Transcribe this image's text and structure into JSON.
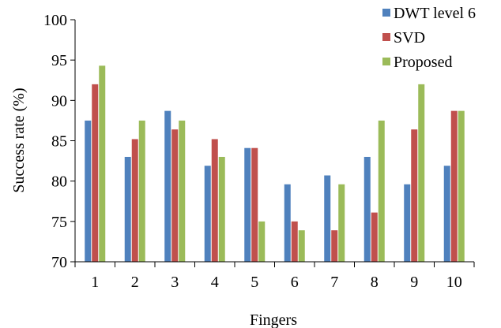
{
  "chart_data": {
    "type": "bar",
    "title": "",
    "xlabel": "Fingers",
    "ylabel": "Success rate (%)",
    "ylim": [
      70,
      100
    ],
    "yticks": [
      70,
      75,
      80,
      85,
      90,
      95,
      100
    ],
    "grid": false,
    "legend_position": "top-right",
    "categories": [
      "1",
      "2",
      "3",
      "4",
      "5",
      "6",
      "7",
      "8",
      "9",
      "10"
    ],
    "series": [
      {
        "name": "DWT level 6",
        "color": "#4F81BD",
        "values": [
          87.5,
          83.0,
          88.7,
          81.9,
          84.1,
          79.6,
          80.7,
          83.0,
          79.6,
          81.9
        ]
      },
      {
        "name": "SVD",
        "color": "#C0504D",
        "values": [
          92.0,
          85.2,
          86.4,
          85.2,
          84.1,
          75.0,
          73.9,
          76.1,
          86.4,
          88.7
        ]
      },
      {
        "name": "Proposed",
        "color": "#9BBB59",
        "values": [
          94.3,
          87.5,
          87.5,
          83.0,
          75.0,
          73.9,
          79.6,
          87.5,
          92.0,
          88.7
        ]
      }
    ]
  }
}
